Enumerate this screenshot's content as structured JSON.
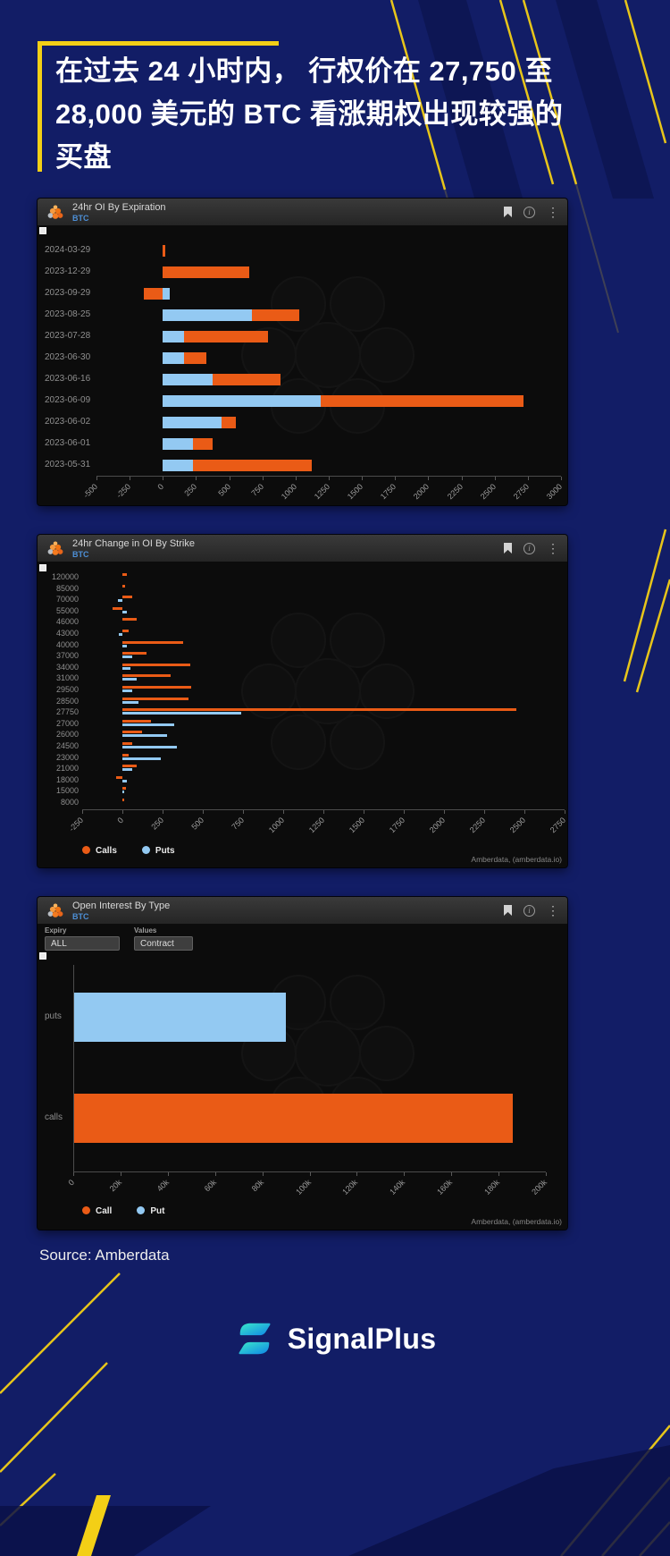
{
  "page": {
    "headline": "在过去 24 小时内， 行权价在 27,750 至 28,000 美元的 BTC 看涨期权出现较强的买盘",
    "source": "Source: Amberdata",
    "brand": "SignalPlus"
  },
  "colors": {
    "background": "#121d66",
    "accent_yellow": "#f3cf16",
    "calls_orange": "#ea5b16",
    "puts_blue": "#93c9f2",
    "panel_bg": "#0c0c0c",
    "header_bg": "#2e2e2e",
    "btc_blue": "#4d8fd6"
  },
  "icons": {
    "info_glyph": "i",
    "kebab_glyph": "⋮"
  },
  "panels": [
    {
      "title": "24hr OI By Expiration",
      "subtitle": "BTC"
    },
    {
      "title": "24hr Change in OI By Strike",
      "subtitle": "BTC",
      "legend": [
        "Calls",
        "Puts"
      ],
      "attribution": "Amberdata, (amberdata.io)"
    },
    {
      "title": "Open Interest By Type",
      "subtitle": "BTC",
      "controls": [
        {
          "label": "Expiry",
          "value": "ALL"
        },
        {
          "label": "Values",
          "value": "Contract"
        }
      ],
      "legend": [
        "Call",
        "Put"
      ],
      "attribution": "Amberdata, (amberdata.io)"
    }
  ],
  "chart_data": [
    {
      "type": "bar",
      "orientation": "horizontal",
      "stacked": true,
      "title": "24hr OI By Expiration",
      "categories": [
        "2024-03-29",
        "2023-12-29",
        "2023-09-29",
        "2023-08-25",
        "2023-07-28",
        "2023-06-30",
        "2023-06-16",
        "2023-06-09",
        "2023-06-02",
        "2023-06-01",
        "2023-05-31"
      ],
      "series": [
        {
          "name": "Puts",
          "color": "#93c9f2",
          "values": [
            0,
            0,
            55,
            670,
            160,
            160,
            375,
            1190,
            440,
            225,
            230
          ]
        },
        {
          "name": "Calls",
          "color": "#ea5b16",
          "values": [
            15,
            650,
            -140,
            360,
            630,
            170,
            510,
            1530,
            110,
            150,
            890
          ]
        }
      ],
      "xlim": [
        -500,
        3000
      ],
      "xtick_vals": [
        -500,
        -250,
        0,
        250,
        500,
        750,
        1000,
        1250,
        1500,
        1750,
        2000,
        2250,
        2500,
        2750,
        3000
      ]
    },
    {
      "type": "bar",
      "orientation": "horizontal",
      "stacked": false,
      "title": "24hr Change in OI By Strike",
      "categories": [
        "120000",
        "85000",
        "70000",
        "55000",
        "46000",
        "43000",
        "40000",
        "37000",
        "34000",
        "31000",
        "29500",
        "28500",
        "27750",
        "27000",
        "26000",
        "24500",
        "23000",
        "21000",
        "18000",
        "15000",
        "8000"
      ],
      "series": [
        {
          "name": "Calls",
          "color": "#ea5b16",
          "values": [
            30,
            15,
            60,
            -60,
            90,
            40,
            380,
            150,
            420,
            300,
            430,
            410,
            2450,
            180,
            120,
            60,
            40,
            90,
            -40,
            20,
            10
          ]
        },
        {
          "name": "Puts",
          "color": "#93c9f2",
          "values": [
            0,
            0,
            -30,
            30,
            0,
            -20,
            30,
            60,
            50,
            90,
            60,
            100,
            740,
            320,
            280,
            340,
            240,
            60,
            30,
            10,
            0
          ]
        }
      ],
      "xlim": [
        -250,
        2750
      ],
      "xtick_vals": [
        -250,
        0,
        250,
        500,
        750,
        1000,
        1250,
        1500,
        1750,
        2000,
        2250,
        2500,
        2750
      ],
      "legend_position": "bottom"
    },
    {
      "type": "bar",
      "orientation": "horizontal",
      "title": "Open Interest By Type",
      "categories": [
        "puts",
        "calls"
      ],
      "values": [
        90000,
        186000
      ],
      "colors": [
        "#93c9f2",
        "#ea5b16"
      ],
      "xlim": [
        0,
        200000
      ],
      "xtick_vals": [
        0,
        20000,
        40000,
        60000,
        80000,
        100000,
        120000,
        140000,
        160000,
        180000,
        200000
      ],
      "xtick_labels": [
        "0",
        "20k",
        "40k",
        "60k",
        "80k",
        "100k",
        "120k",
        "140k",
        "160k",
        "180k",
        "200k"
      ],
      "legend_position": "bottom"
    }
  ]
}
